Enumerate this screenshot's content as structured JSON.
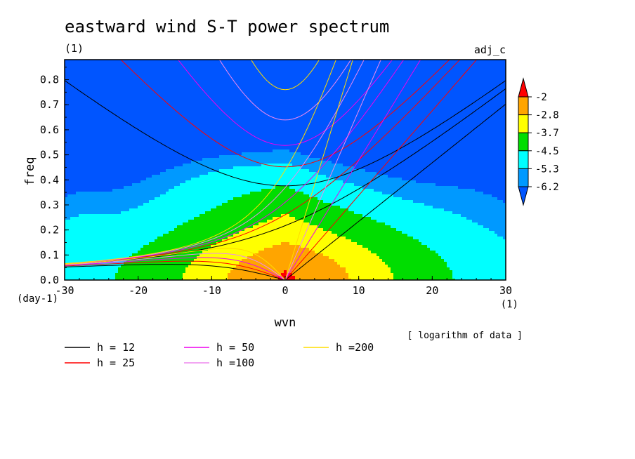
{
  "chart_data": {
    "type": "heatmap",
    "title": "eastward wind S-T power spectrum",
    "subtitle_left": "(1)",
    "subtitle_right": "adj_c",
    "xlabel": "wvn",
    "ylabel": "freq",
    "x_unit": "(1)",
    "y_unit": "(day-1)",
    "xlim": [
      -30,
      30
    ],
    "ylim": [
      0,
      0.88
    ],
    "xticks": [
      -30,
      -20,
      -10,
      0,
      10,
      20,
      30
    ],
    "yticks": [
      0.0,
      0.1,
      0.2,
      0.3,
      0.4,
      0.5,
      0.6,
      0.7,
      0.8
    ],
    "data_note": "[ logarithm of data ]",
    "colorbar": {
      "levels": [
        "-2",
        "-2.8",
        "-3.7",
        "-4.5",
        "-5.3",
        "-6.2"
      ],
      "colors": [
        "#ff0000",
        "#ffa500",
        "#ffff00",
        "#00dd00",
        "#00ffff",
        "#0099ff",
        "#0055ff"
      ]
    },
    "dispersion_curves": [
      {
        "label": "h = 12",
        "h": 12,
        "color": "#000000"
      },
      {
        "label": "h = 25",
        "h": 25,
        "color": "#ff0000"
      },
      {
        "label": "h = 50",
        "h": 50,
        "color": "#ee00ee"
      },
      {
        "label": "h =100",
        "h": 100,
        "color": "#ee88ee"
      },
      {
        "label": "h =200",
        "h": 200,
        "color": "#ffdd00"
      }
    ]
  }
}
